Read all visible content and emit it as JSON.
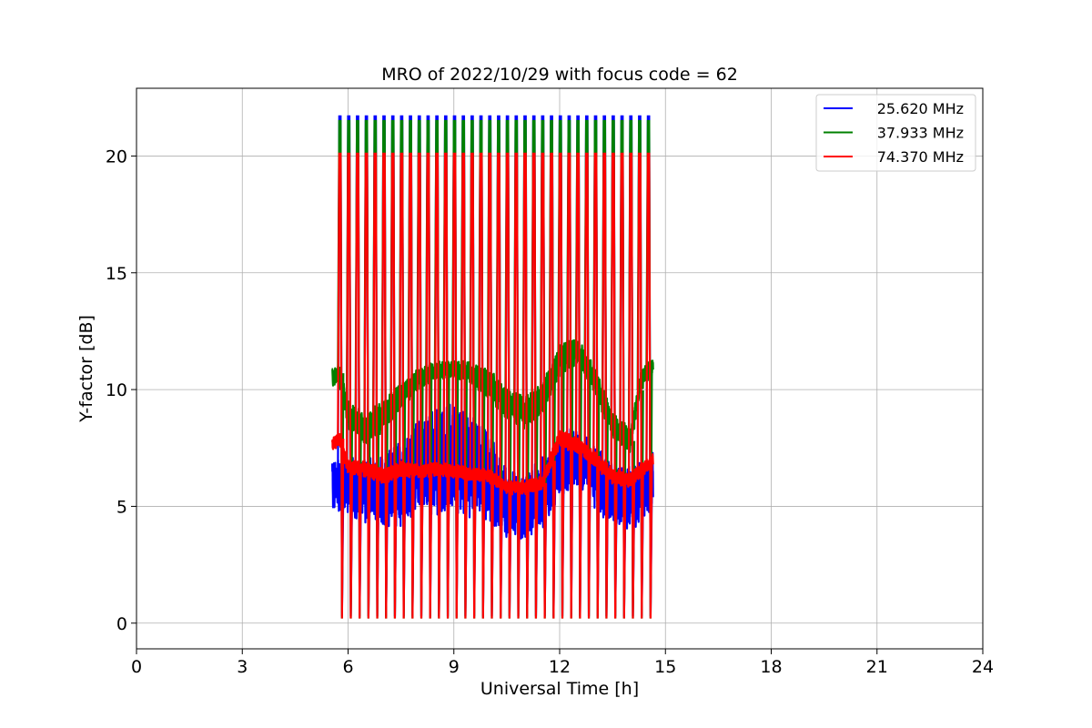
{
  "chart_data": {
    "type": "line",
    "title": "MRO of 2022/10/29 with focus code = 62",
    "xlabel": "Universal Time [h]",
    "ylabel": "Y-factor [dB]",
    "xlim": [
      0,
      24
    ],
    "ylim": [
      -1.1,
      22.9
    ],
    "xticks": [
      0,
      3,
      6,
      9,
      12,
      15,
      18,
      21,
      24
    ],
    "yticks": [
      0,
      5,
      10,
      15,
      20
    ],
    "grid": true,
    "legend_position": "top-right",
    "pulse_times_h": [
      5.75,
      6.0,
      6.25,
      6.5,
      6.75,
      7.0,
      7.25,
      7.5,
      7.75,
      8.0,
      8.25,
      8.5,
      8.75,
      9.0,
      9.25,
      9.5,
      9.75,
      10.0,
      10.25,
      10.5,
      10.75,
      11.0,
      11.25,
      11.5,
      11.75,
      12.0,
      12.25,
      12.5,
      12.75,
      13.0,
      13.25,
      13.5,
      13.75,
      14.0,
      14.25,
      14.5
    ],
    "series": [
      {
        "name": "25.620 MHz",
        "color": "#0000ff",
        "pulse_peak": 21.7,
        "pulse_low": 0.3,
        "baseline_x": [
          5.55,
          6.0,
          6.5,
          7.0,
          7.5,
          8.0,
          8.5,
          9.0,
          9.5,
          10.0,
          10.5,
          11.0,
          11.5,
          12.0,
          12.5,
          13.0,
          13.5,
          14.0,
          14.5,
          14.65
        ],
        "baseline_y": [
          6.0,
          5.8,
          5.7,
          5.6,
          6.0,
          6.6,
          7.0,
          7.1,
          6.9,
          6.2,
          5.2,
          4.9,
          5.5,
          6.8,
          7.2,
          6.3,
          5.5,
          5.3,
          5.8,
          6.2
        ],
        "baseline_spread": [
          1.2,
          1.3,
          1.5,
          1.6,
          1.9,
          2.2,
          2.5,
          2.6,
          2.5,
          2.0,
          1.6,
          1.5,
          1.6,
          1.4,
          1.3,
          1.4,
          1.5,
          1.4,
          1.3,
          1.2
        ]
      },
      {
        "name": "37.933 MHz",
        "color": "#008000",
        "pulse_peak": 21.5,
        "pulse_low": 0.2,
        "baseline_x": [
          5.55,
          5.75,
          6.0,
          6.5,
          7.0,
          7.5,
          8.0,
          8.5,
          9.0,
          9.5,
          10.0,
          10.5,
          11.0,
          11.5,
          12.0,
          12.5,
          13.0,
          13.5,
          14.0,
          14.3,
          14.65
        ],
        "baseline_y": [
          10.5,
          10.7,
          8.9,
          8.3,
          8.9,
          9.7,
          10.5,
          10.8,
          10.9,
          10.7,
          10.2,
          9.4,
          9.0,
          9.6,
          11.3,
          11.7,
          10.4,
          8.5,
          7.8,
          10.4,
          11.0
        ],
        "baseline_spread": [
          0.4,
          0.5,
          0.6,
          0.7,
          0.7,
          0.6,
          0.5,
          0.4,
          0.4,
          0.5,
          0.7,
          0.7,
          0.7,
          0.8,
          0.7,
          0.6,
          0.6,
          0.6,
          0.6,
          0.5,
          0.4
        ]
      },
      {
        "name": "74.370 MHz",
        "color": "#ff0000",
        "pulse_peak": 20.1,
        "pulse_low": 0.2,
        "baseline_x": [
          5.55,
          5.75,
          6.0,
          6.5,
          7.0,
          7.5,
          8.0,
          8.5,
          9.0,
          9.5,
          10.0,
          10.5,
          11.0,
          11.5,
          12.0,
          12.5,
          13.0,
          13.5,
          14.0,
          14.65
        ],
        "baseline_y": [
          7.6,
          7.9,
          6.7,
          6.6,
          6.3,
          6.6,
          6.5,
          6.6,
          6.5,
          6.4,
          6.3,
          5.8,
          5.8,
          6.0,
          7.9,
          7.6,
          7.0,
          6.3,
          6.1,
          7.0
        ],
        "baseline_spread": [
          0.3,
          0.3,
          0.3,
          0.35,
          0.35,
          0.35,
          0.3,
          0.3,
          0.3,
          0.3,
          0.3,
          0.3,
          0.3,
          0.3,
          0.4,
          0.35,
          0.35,
          0.35,
          0.35,
          0.3
        ]
      }
    ]
  }
}
